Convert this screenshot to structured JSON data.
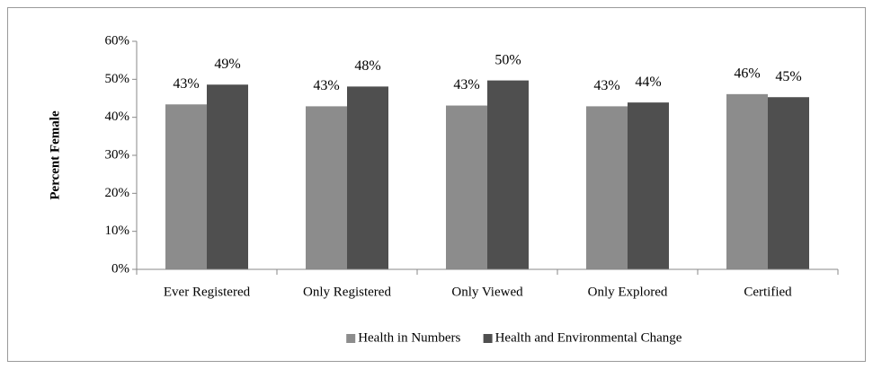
{
  "chart_data": {
    "type": "bar",
    "ylabel": "Percent Female",
    "categories": [
      "Ever Registered",
      "Only Registered",
      "Only Viewed",
      "Only Explored",
      "Certified"
    ],
    "series": [
      {
        "name": "Health in Numbers",
        "color": "#8c8c8c",
        "values": [
          43.4,
          42.9,
          43.1,
          42.9,
          46.1
        ],
        "value_labels": [
          "43%",
          "43%",
          "43%",
          "43%",
          "46%"
        ]
      },
      {
        "name": "Health and Environmental Change",
        "color": "#4f4f4f",
        "values": [
          48.6,
          48.1,
          49.7,
          43.9,
          45.3
        ],
        "value_labels": [
          "49%",
          "48%",
          "50%",
          "44%",
          "45%"
        ]
      }
    ],
    "ylim": [
      0,
      60
    ],
    "yticks": [
      {
        "value": 0,
        "label": "0%"
      },
      {
        "value": 10,
        "label": "10%"
      },
      {
        "value": 20,
        "label": "20%"
      },
      {
        "value": 30,
        "label": "30%"
      },
      {
        "value": 40,
        "label": "40%"
      },
      {
        "value": 50,
        "label": "50%"
      },
      {
        "value": 60,
        "label": "60%"
      }
    ],
    "legend": "bottom"
  }
}
